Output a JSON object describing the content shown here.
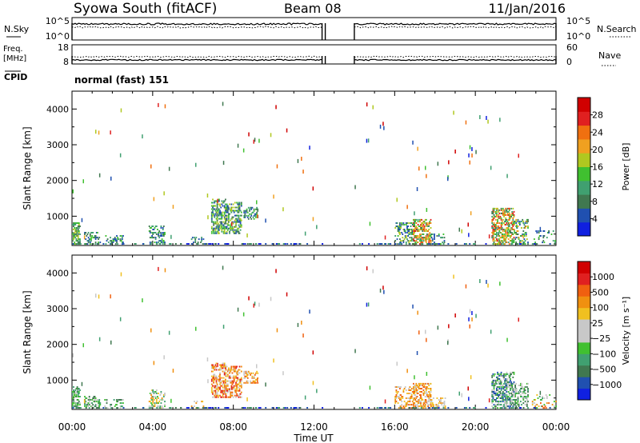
{
  "header": {
    "station": "Syowa South (fitACF)",
    "beam": "Beam 08",
    "date": "11/Jan/2016"
  },
  "top_panels": {
    "nsky_label": "N.Sky",
    "nsky_ticks": [
      "10^5",
      "10^0"
    ],
    "nsearch_label": "N.Search",
    "nsearch_ticks": [
      "10^5",
      "10^0"
    ],
    "freq_label_1": "Freq.",
    "freq_label_2": "[MHz]",
    "freq_ticks": [
      "18",
      "8"
    ],
    "nave_label": "Nave",
    "nave_ticks": [
      "60",
      "0"
    ],
    "cpid_label": "CPID",
    "cpid_text": "normal (fast) 151"
  },
  "chart_data": [
    {
      "type": "heatmap",
      "name": "power-panel",
      "ylabel": "Slant Range [km]",
      "yticks": [
        1000,
        2000,
        3000,
        4000
      ],
      "ylim": [
        180,
        4500
      ],
      "xlim": [
        0,
        24
      ],
      "colorbar_label": "Power [dB]",
      "colorbar_ticks": [
        "28",
        "24",
        "20",
        "16",
        "12",
        "8",
        "4"
      ],
      "colors": [
        "#1020e0",
        "#2050b0",
        "#407850",
        "#40a070",
        "#40c030",
        "#b0c820",
        "#f0a020",
        "#f07010",
        "#e02020",
        "#d00000"
      ],
      "data_gaps_ut": [
        [
          12.4,
          14.0
        ]
      ],
      "clusters": [
        {
          "t": [
            0.0,
            0.4
          ],
          "r": [
            200,
            800
          ],
          "level": [
            2,
            5
          ],
          "density": 0.5
        },
        {
          "t": [
            0.6,
            1.4
          ],
          "r": [
            200,
            550
          ],
          "level": [
            1,
            4
          ],
          "density": 0.35
        },
        {
          "t": [
            1.6,
            2.5
          ],
          "r": [
            200,
            450
          ],
          "level": [
            1,
            4
          ],
          "density": 0.3
        },
        {
          "t": [
            3.8,
            4.6
          ],
          "r": [
            200,
            700
          ],
          "level": [
            1,
            4
          ],
          "density": 0.3
        },
        {
          "t": [
            5.9,
            6.5
          ],
          "r": [
            200,
            400
          ],
          "level": [
            1,
            3
          ],
          "density": 0.2
        },
        {
          "t": [
            6.9,
            7.6
          ],
          "r": [
            500,
            1450
          ],
          "level": [
            1,
            5
          ],
          "density": 0.45
        },
        {
          "t": [
            7.6,
            8.4
          ],
          "r": [
            500,
            1400
          ],
          "level": [
            1,
            5
          ],
          "density": 0.45
        },
        {
          "t": [
            8.5,
            9.2
          ],
          "r": [
            900,
            1250
          ],
          "level": [
            1,
            4
          ],
          "density": 0.4
        },
        {
          "t": [
            16.0,
            16.9
          ],
          "r": [
            200,
            800
          ],
          "level": [
            1,
            5
          ],
          "density": 0.35
        },
        {
          "t": [
            16.9,
            17.8
          ],
          "r": [
            200,
            900
          ],
          "level": [
            2,
            8
          ],
          "density": 0.5
        },
        {
          "t": [
            17.8,
            18.5
          ],
          "r": [
            200,
            500
          ],
          "level": [
            1,
            4
          ],
          "density": 0.25
        },
        {
          "t": [
            20.8,
            21.9
          ],
          "r": [
            200,
            1200
          ],
          "level": [
            2,
            8
          ],
          "density": 0.5
        },
        {
          "t": [
            21.9,
            22.6
          ],
          "r": [
            200,
            900
          ],
          "level": [
            1,
            6
          ],
          "density": 0.35
        },
        {
          "t": [
            22.8,
            24.0
          ],
          "r": [
            200,
            600
          ],
          "level": [
            1,
            4
          ],
          "density": 0.15
        }
      ]
    },
    {
      "type": "heatmap",
      "name": "velocity-panel",
      "ylabel": "Slant Range [km]",
      "yticks": [
        1000,
        2000,
        3000,
        4000
      ],
      "ylim": [
        180,
        4500
      ],
      "xlim": [
        0,
        24
      ],
      "colorbar_label": "Velocity [m s⁻¹]",
      "colorbar_ticks": [
        "1000",
        "500",
        "100",
        "25",
        "−25",
        "−100",
        "−500",
        "−1000"
      ],
      "colors": [
        "#1020e0",
        "#2050b0",
        "#407850",
        "#40a070",
        "#40c030",
        "#c8c8c8",
        "#c8c8c8",
        "#f0c020",
        "#f09010",
        "#f06010",
        "#e02020",
        "#d00000"
      ],
      "data_gaps_ut": [
        [
          12.4,
          14.0
        ]
      ],
      "clusters": [
        {
          "t": [
            0.0,
            0.4
          ],
          "r": [
            200,
            800
          ],
          "level": [
            2,
            5
          ],
          "density": 0.5
        },
        {
          "t": [
            0.6,
            1.4
          ],
          "r": [
            200,
            550
          ],
          "level": [
            2,
            5
          ],
          "density": 0.35
        },
        {
          "t": [
            1.6,
            2.5
          ],
          "r": [
            200,
            450
          ],
          "level": [
            2,
            5
          ],
          "density": 0.3
        },
        {
          "t": [
            3.8,
            4.6
          ],
          "r": [
            200,
            700
          ],
          "level": [
            3,
            8
          ],
          "density": 0.3
        },
        {
          "t": [
            5.9,
            6.5
          ],
          "r": [
            200,
            400
          ],
          "level": [
            5,
            8
          ],
          "density": 0.2
        },
        {
          "t": [
            6.9,
            7.6
          ],
          "r": [
            500,
            1450
          ],
          "level": [
            6,
            10
          ],
          "density": 0.45
        },
        {
          "t": [
            7.6,
            8.4
          ],
          "r": [
            500,
            1400
          ],
          "level": [
            6,
            10
          ],
          "density": 0.45
        },
        {
          "t": [
            8.5,
            9.2
          ],
          "r": [
            900,
            1250
          ],
          "level": [
            6,
            9
          ],
          "density": 0.4
        },
        {
          "t": [
            16.0,
            16.9
          ],
          "r": [
            200,
            800
          ],
          "level": [
            6,
            9
          ],
          "density": 0.35
        },
        {
          "t": [
            16.9,
            17.8
          ],
          "r": [
            200,
            900
          ],
          "level": [
            6,
            9
          ],
          "density": 0.5
        },
        {
          "t": [
            17.8,
            18.5
          ],
          "r": [
            200,
            500
          ],
          "level": [
            5,
            8
          ],
          "density": 0.25
        },
        {
          "t": [
            20.8,
            21.9
          ],
          "r": [
            200,
            1200
          ],
          "level": [
            1,
            5
          ],
          "density": 0.5
        },
        {
          "t": [
            21.9,
            22.6
          ],
          "r": [
            200,
            900
          ],
          "level": [
            2,
            6
          ],
          "density": 0.35
        },
        {
          "t": [
            22.8,
            24.0
          ],
          "r": [
            200,
            600
          ],
          "level": [
            3,
            9
          ],
          "density": 0.15
        }
      ]
    }
  ],
  "xaxis": {
    "label": "Time UT",
    "ticks": [
      "00:00",
      "04:00",
      "08:00",
      "12:00",
      "16:00",
      "20:00",
      "00:00"
    ]
  }
}
